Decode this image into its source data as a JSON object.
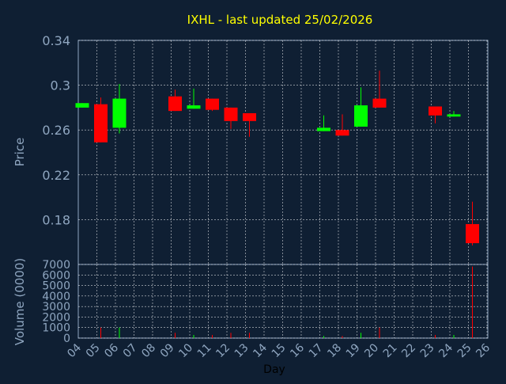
{
  "chart_data": {
    "type": "candlestick",
    "title": "IXHL - last updated 25/02/2026",
    "ylabel": "Price",
    "volume_label": "Volume (0000)",
    "xlabel": "Day",
    "x_ticks": [
      "04",
      "05",
      "06",
      "07",
      "08",
      "09",
      "10",
      "11",
      "12",
      "13",
      "14",
      "15",
      "16",
      "17",
      "18",
      "19",
      "20",
      "21",
      "22",
      "23",
      "24",
      "25",
      "26"
    ],
    "price_ticks": [
      "0.34",
      "0.3",
      "0.26",
      "0.22",
      "0.18"
    ],
    "price_ylim": [
      0.14,
      0.34
    ],
    "volume_ticks": [
      "7000",
      "6000",
      "5000",
      "4000",
      "3000",
      "2000",
      "1000",
      "0"
    ],
    "volume_ylim": [
      0,
      7000
    ],
    "grid": true,
    "colors": {
      "background": "#0f1f33",
      "plot_background": "#0f1f33",
      "title": "#ffff00",
      "axis_text": "#8fa6c0",
      "grid": "#ffffff",
      "up": "#00ff00",
      "down": "#ff0000"
    },
    "candles": [
      {
        "day": "04",
        "open": 0.28,
        "high": 0.284,
        "low": 0.28,
        "close": 0.284,
        "volume": 0
      },
      {
        "day": "05",
        "open": 0.283,
        "high": 0.289,
        "low": 0.249,
        "close": 0.249,
        "volume": 1000
      },
      {
        "day": "06",
        "open": 0.262,
        "high": 0.301,
        "low": 0.257,
        "close": 0.288,
        "volume": 1000
      },
      {
        "day": "09",
        "open": 0.29,
        "high": 0.296,
        "low": 0.277,
        "close": 0.277,
        "volume": 500
      },
      {
        "day": "10",
        "open": 0.279,
        "high": 0.297,
        "low": 0.279,
        "close": 0.282,
        "volume": 300
      },
      {
        "day": "11",
        "open": 0.288,
        "high": 0.288,
        "low": 0.277,
        "close": 0.278,
        "volume": 300
      },
      {
        "day": "12",
        "open": 0.28,
        "high": 0.28,
        "low": 0.261,
        "close": 0.268,
        "volume": 500
      },
      {
        "day": "13",
        "open": 0.275,
        "high": 0.275,
        "low": 0.254,
        "close": 0.268,
        "volume": 500
      },
      {
        "day": "17",
        "open": 0.259,
        "high": 0.273,
        "low": 0.259,
        "close": 0.262,
        "volume": 200
      },
      {
        "day": "18",
        "open": 0.26,
        "high": 0.274,
        "low": 0.255,
        "close": 0.255,
        "volume": 200
      },
      {
        "day": "19",
        "open": 0.263,
        "high": 0.298,
        "low": 0.263,
        "close": 0.282,
        "volume": 500
      },
      {
        "day": "20",
        "open": 0.288,
        "high": 0.313,
        "low": 0.28,
        "close": 0.28,
        "volume": 1000
      },
      {
        "day": "23",
        "open": 0.281,
        "high": 0.281,
        "low": 0.266,
        "close": 0.273,
        "volume": 300
      },
      {
        "day": "24",
        "open": 0.272,
        "high": 0.277,
        "low": 0.272,
        "close": 0.274,
        "volume": 300
      },
      {
        "day": "25",
        "open": 0.176,
        "high": 0.196,
        "low": 0.157,
        "close": 0.159,
        "volume": 6800
      }
    ]
  }
}
